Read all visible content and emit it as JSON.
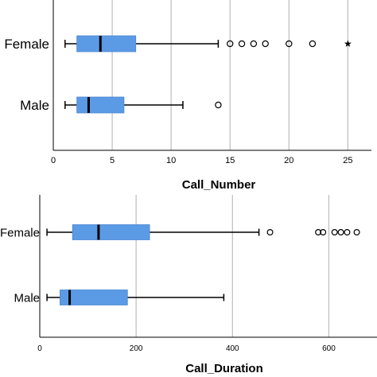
{
  "chart_data": [
    {
      "type": "boxplot",
      "orientation": "horizontal",
      "xlabel": "Call_Number",
      "xlim": [
        0,
        27
      ],
      "xticks": [
        0,
        5,
        10,
        15,
        20,
        25
      ],
      "grid": "vertical",
      "box_color": "#5B9BE6",
      "groups": [
        {
          "label": "Female",
          "whisker_low": 1,
          "q1": 2,
          "median": 4,
          "q3": 7,
          "whisker_high": 14,
          "outliers": [
            15,
            16,
            17,
            18,
            20,
            22
          ],
          "extremes": [
            25
          ]
        },
        {
          "label": "Male",
          "whisker_low": 1,
          "q1": 2,
          "median": 3,
          "q3": 6,
          "whisker_high": 11,
          "outliers": [
            14
          ],
          "extremes": []
        }
      ]
    },
    {
      "type": "boxplot",
      "orientation": "horizontal",
      "xlabel": "Call_Duration",
      "xlim": [
        0,
        700
      ],
      "xticks": [
        0,
        200,
        400,
        600
      ],
      "grid": "vertical",
      "box_color": "#5B9BE6",
      "groups": [
        {
          "label": "Female",
          "whisker_low": 15,
          "q1": 68,
          "median": 122,
          "q3": 228,
          "whisker_high": 455,
          "outliers": [
            478,
            578,
            588,
            612,
            625,
            638,
            658
          ],
          "extremes": []
        },
        {
          "label": "Male",
          "whisker_low": 15,
          "q1": 42,
          "median": 62,
          "q3": 182,
          "whisker_high": 382,
          "outliers": [],
          "extremes": []
        }
      ]
    }
  ]
}
